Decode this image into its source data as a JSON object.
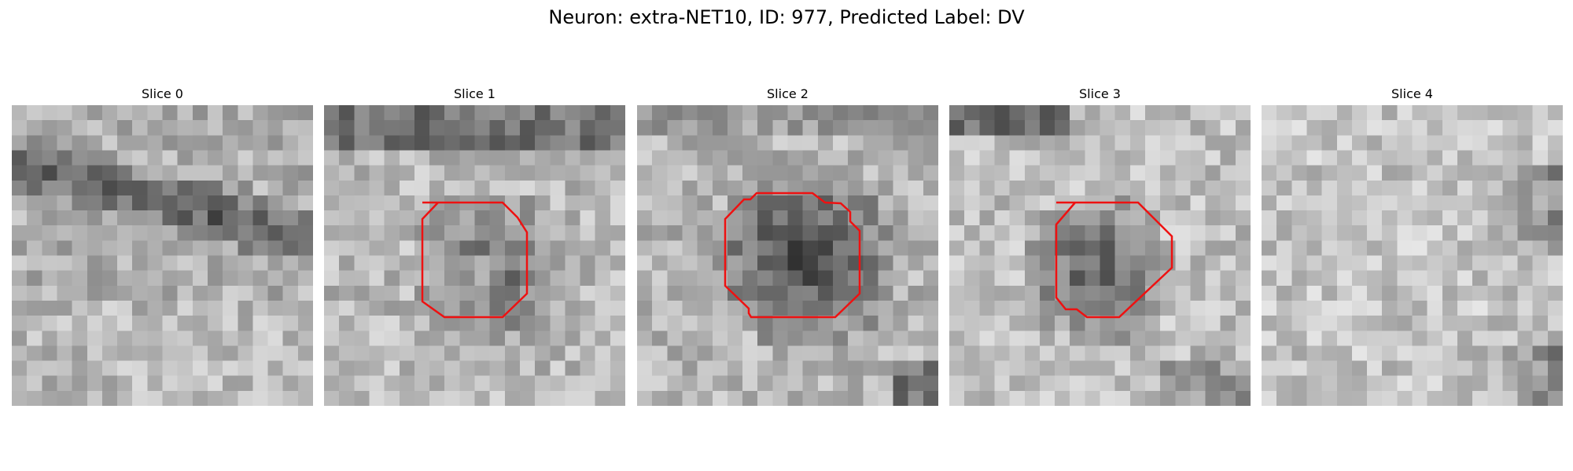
{
  "figure": {
    "title": "Neuron: extra-NET10, ID: 977, Predicted Label: DV"
  },
  "panels": [
    {
      "title": "Slice 0",
      "has_contour": false
    },
    {
      "title": "Slice 1",
      "has_contour": true
    },
    {
      "title": "Slice 2",
      "has_contour": true
    },
    {
      "title": "Slice 3",
      "has_contour": true
    },
    {
      "title": "Slice 4",
      "has_contour": false
    }
  ],
  "colors": {
    "contour": "#ee1111",
    "colormap": "gray"
  }
}
